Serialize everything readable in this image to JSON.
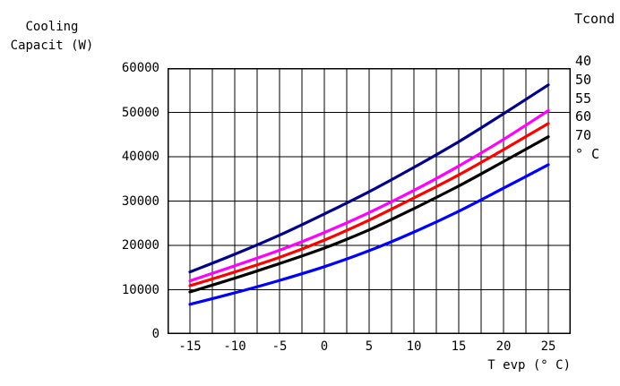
{
  "header": {
    "title_line1": "Cooling",
    "title_line2": "Capacit (W)"
  },
  "legend": {
    "title": "Tcond",
    "items": [
      "40",
      "50",
      "55",
      "60",
      "70"
    ],
    "unit": "° C"
  },
  "axes": {
    "x_label": "T evp (° C)",
    "y_tick_labels": [
      "60000",
      "50000",
      "40000",
      "30000",
      "20000",
      "10000",
      "0"
    ],
    "x_tick_labels": [
      "-15",
      "-10",
      "-5",
      "0",
      "5",
      "10",
      "15",
      "20",
      "25"
    ]
  },
  "chart_data": {
    "type": "line",
    "title": "Cooling Capacit (W) vs T evp (° C)",
    "xlabel": "T evp (° C)",
    "ylabel": "Cooling Capacit (W)",
    "legend_title": "Tcond",
    "legend_unit": "° C",
    "legend_position": "right",
    "grid": {
      "on": true,
      "x_step": 2.5,
      "y_step": 10000
    },
    "xlim": [
      -17.5,
      27.5
    ],
    "ylim": [
      0,
      60000
    ],
    "x": [
      -15,
      -10,
      -5,
      0,
      5,
      10,
      15,
      20,
      25
    ],
    "series": [
      {
        "name": "Tcond 40",
        "color": "#00008B",
        "values": [
          14000,
          18000,
          22300,
          27100,
          32100,
          37600,
          43400,
          49700,
          56200
        ]
      },
      {
        "name": "Tcond 50",
        "color": "#FF00FF",
        "values": [
          12000,
          15400,
          18900,
          22900,
          27400,
          32400,
          37900,
          43900,
          50400
        ]
      },
      {
        "name": "Tcond 55",
        "color": "#FF0000",
        "values": [
          10900,
          14000,
          17300,
          21200,
          25700,
          30700,
          35900,
          41600,
          47500
        ]
      },
      {
        "name": "Tcond 60",
        "color": "#000000",
        "values": [
          9500,
          12600,
          15900,
          19400,
          23500,
          28300,
          33400,
          38900,
          44500
        ]
      },
      {
        "name": "Tcond 70",
        "color": "#0000FF",
        "values": [
          6700,
          9300,
          12100,
          15200,
          18800,
          23000,
          27700,
          32900,
          38200
        ]
      }
    ],
    "frame_color": "#000000",
    "grid_color": "#000000"
  }
}
